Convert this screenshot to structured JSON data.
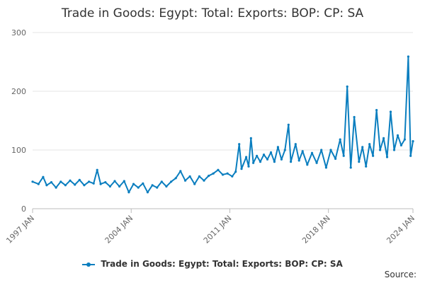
{
  "chart_data": {
    "type": "line",
    "title": "Trade in Goods: Egypt: Total: Exports: BOP: CP: SA",
    "xlabel": "",
    "ylabel": "",
    "x_range": [
      "1997-01",
      "2024-01"
    ],
    "ylim": [
      0,
      300
    ],
    "y_ticks": [
      0,
      100,
      200,
      300
    ],
    "x_ticks": [
      "1997 JAN",
      "2004 JAN",
      "2011 JAN",
      "2018 JAN",
      "2024 JAN"
    ],
    "grid": true,
    "legend_placement": "bottom",
    "color": "#0a7ebf",
    "series": [
      {
        "name": "Trade in Goods: Egypt: Total: Exports: BOP: CP: SA",
        "points": [
          [
            "1997-01",
            46
          ],
          [
            "1997-06",
            42
          ],
          [
            "1997-10",
            54
          ],
          [
            "1998-01",
            40
          ],
          [
            "1998-05",
            45
          ],
          [
            "1998-09",
            36
          ],
          [
            "1999-01",
            46
          ],
          [
            "1999-05",
            40
          ],
          [
            "1999-09",
            48
          ],
          [
            "2000-01",
            41
          ],
          [
            "2000-05",
            49
          ],
          [
            "2000-09",
            40
          ],
          [
            "2001-01",
            46
          ],
          [
            "2001-05",
            43
          ],
          [
            "2001-08",
            66
          ],
          [
            "2001-11",
            42
          ],
          [
            "2002-03",
            45
          ],
          [
            "2002-07",
            38
          ],
          [
            "2002-11",
            47
          ],
          [
            "2003-03",
            38
          ],
          [
            "2003-07",
            47
          ],
          [
            "2003-11",
            28
          ],
          [
            "2004-03",
            42
          ],
          [
            "2004-07",
            36
          ],
          [
            "2004-11",
            43
          ],
          [
            "2005-03",
            28
          ],
          [
            "2005-07",
            40
          ],
          [
            "2005-11",
            36
          ],
          [
            "2006-03",
            46
          ],
          [
            "2006-07",
            38
          ],
          [
            "2006-11",
            46
          ],
          [
            "2007-03",
            52
          ],
          [
            "2007-07",
            64
          ],
          [
            "2007-11",
            48
          ],
          [
            "2008-03",
            55
          ],
          [
            "2008-07",
            42
          ],
          [
            "2008-11",
            55
          ],
          [
            "2009-03",
            48
          ],
          [
            "2009-07",
            56
          ],
          [
            "2009-11",
            60
          ],
          [
            "2010-03",
            66
          ],
          [
            "2010-07",
            58
          ],
          [
            "2010-11",
            60
          ],
          [
            "2011-03",
            55
          ],
          [
            "2011-06",
            63
          ],
          [
            "2011-09",
            110
          ],
          [
            "2011-11",
            68
          ],
          [
            "2012-03",
            88
          ],
          [
            "2012-05",
            72
          ],
          [
            "2012-07",
            120
          ],
          [
            "2012-09",
            78
          ],
          [
            "2012-12",
            90
          ],
          [
            "2013-03",
            80
          ],
          [
            "2013-06",
            92
          ],
          [
            "2013-09",
            84
          ],
          [
            "2013-12",
            96
          ],
          [
            "2014-03",
            80
          ],
          [
            "2014-06",
            105
          ],
          [
            "2014-09",
            84
          ],
          [
            "2014-12",
            100
          ],
          [
            "2015-03",
            143
          ],
          [
            "2015-05",
            80
          ],
          [
            "2015-09",
            110
          ],
          [
            "2015-12",
            82
          ],
          [
            "2016-03",
            98
          ],
          [
            "2016-07",
            75
          ],
          [
            "2016-11",
            95
          ],
          [
            "2017-03",
            78
          ],
          [
            "2017-07",
            100
          ],
          [
            "2017-11",
            70
          ],
          [
            "2018-03",
            100
          ],
          [
            "2018-07",
            85
          ],
          [
            "2018-11",
            118
          ],
          [
            "2019-02",
            90
          ],
          [
            "2019-05",
            208
          ],
          [
            "2019-08",
            70
          ],
          [
            "2019-11",
            156
          ],
          [
            "2020-03",
            80
          ],
          [
            "2020-06",
            105
          ],
          [
            "2020-09",
            72
          ],
          [
            "2020-12",
            110
          ],
          [
            "2021-03",
            90
          ],
          [
            "2021-06",
            168
          ],
          [
            "2021-09",
            100
          ],
          [
            "2021-12",
            120
          ],
          [
            "2022-03",
            88
          ],
          [
            "2022-06",
            165
          ],
          [
            "2022-09",
            100
          ],
          [
            "2022-12",
            125
          ],
          [
            "2023-03",
            108
          ],
          [
            "2023-06",
            118
          ],
          [
            "2023-09",
            259
          ],
          [
            "2023-11",
            90
          ],
          [
            "2024-01",
            115
          ]
        ]
      }
    ],
    "source_label": "Source:"
  }
}
